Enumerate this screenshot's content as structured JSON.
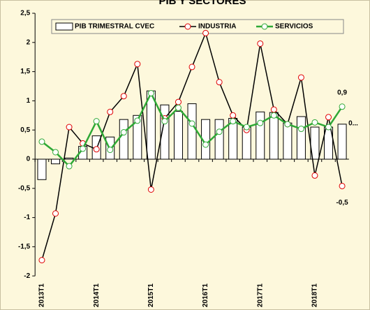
{
  "chart_data": {
    "type": "bar",
    "title": "PIB Y SECTORES",
    "categories": [
      "2013T1",
      null,
      null,
      null,
      "2014T1",
      null,
      null,
      null,
      "2015T1",
      null,
      null,
      null,
      "2016T1",
      null,
      null,
      null,
      "2017T1",
      null,
      null,
      null,
      "2018T1",
      null,
      null
    ],
    "series": [
      {
        "name": "PIB TRIMESTRAL CVEC",
        "type": "bar",
        "color": "#ffffff",
        "stroke": "#000000",
        "values": [
          -0.35,
          -0.08,
          0.02,
          0.22,
          0.4,
          0.38,
          0.68,
          0.75,
          1.17,
          0.93,
          0.82,
          0.95,
          0.68,
          0.68,
          0.7,
          0.55,
          0.81,
          0.8,
          0.62,
          0.73,
          0.55,
          0.55,
          0.6
        ],
        "value_labels": [
          null,
          null,
          null,
          null,
          null,
          null,
          null,
          null,
          null,
          null,
          null,
          null,
          null,
          null,
          null,
          null,
          null,
          null,
          null,
          null,
          null,
          null,
          "0..."
        ]
      },
      {
        "name": "INDUSTRIA",
        "type": "line",
        "color": "#000000",
        "marker_color": "#e00000",
        "values": [
          -1.73,
          -0.93,
          0.55,
          0.27,
          0.17,
          0.81,
          1.08,
          1.63,
          -0.52,
          0.7,
          0.98,
          1.58,
          2.16,
          1.32,
          0.75,
          0.5,
          1.98,
          0.85,
          0.6,
          1.4,
          -0.28,
          0.72,
          -0.46
        ],
        "value_labels": [
          null,
          null,
          null,
          null,
          null,
          null,
          null,
          null,
          null,
          null,
          null,
          null,
          null,
          null,
          null,
          null,
          null,
          null,
          null,
          null,
          null,
          null,
          "-0,5"
        ]
      },
      {
        "name": "SERVICIOS",
        "type": "line",
        "color": "#2ea836",
        "marker_color": "#2ea836",
        "values": [
          0.3,
          0.12,
          -0.12,
          0.18,
          0.65,
          0.16,
          0.46,
          0.66,
          1.13,
          0.65,
          0.88,
          0.61,
          0.25,
          0.47,
          0.65,
          0.55,
          0.62,
          0.75,
          0.6,
          0.52,
          0.63,
          0.55,
          0.9
        ],
        "value_labels": [
          null,
          null,
          null,
          null,
          null,
          null,
          null,
          null,
          null,
          null,
          null,
          null,
          null,
          null,
          null,
          null,
          null,
          null,
          null,
          null,
          null,
          null,
          "0,9"
        ]
      }
    ],
    "ylim": [
      -2,
      2.5
    ],
    "yticks": [
      -2,
      {
        "value": -1.5,
        "label": "-1,5"
      },
      -1,
      {
        "value": -0.5,
        "label": "-0,5"
      },
      0,
      {
        "value": 0.5,
        "label": "0,5"
      },
      1,
      {
        "value": 1.5,
        "label": "1,5"
      },
      2,
      {
        "value": 2.5,
        "label": "2,5"
      }
    ],
    "grid": false,
    "legend": "top"
  }
}
